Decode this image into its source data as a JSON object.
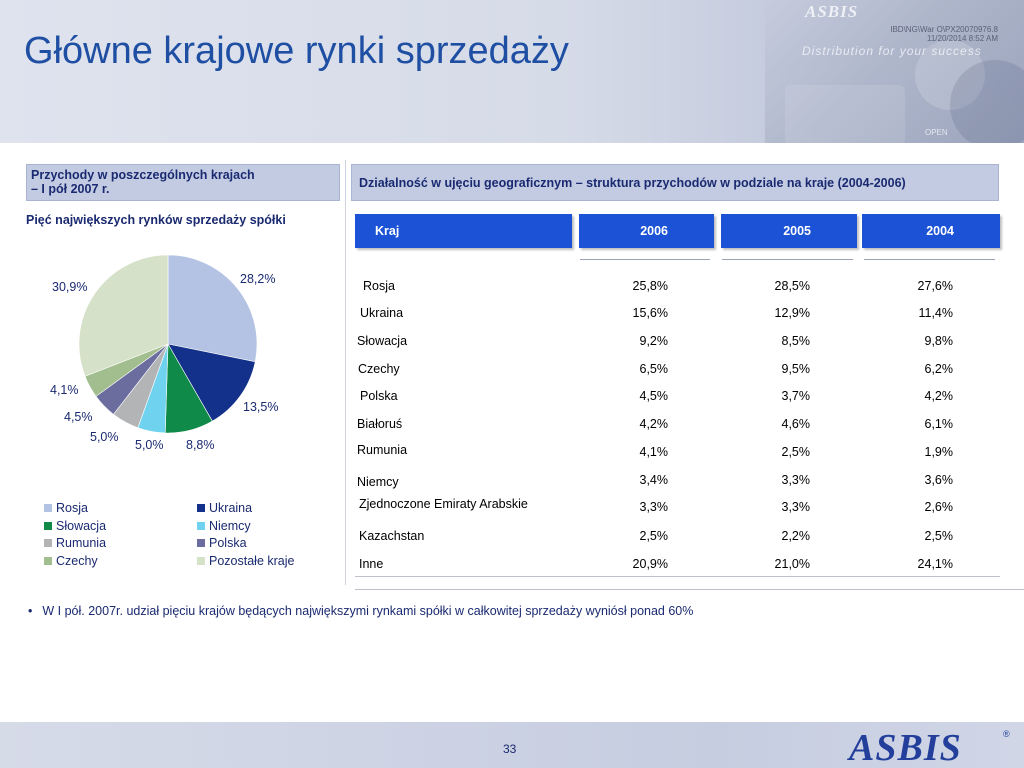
{
  "slide": {
    "title": "Główne krajowe rynki sprzedaży",
    "doc_id_line1": "IBD\\NG\\War O\\PX20070976.8",
    "doc_id_line2": "11/20/2014 8:52 AM",
    "watermark_logo": "ASBIS",
    "watermark_tagline": "Distribution for your success",
    "watermark_open": "OPEN",
    "page_number": "33",
    "logo_text": "ASBIS",
    "logo_reg": "®"
  },
  "left_panel": {
    "header_line1": "Przychody w poszczególnych krajach",
    "header_line2": "– I pół 2007 r.",
    "subtitle": "Pięć największych rynków sprzedaży spółki"
  },
  "right_panel": {
    "header": "Działalność w ujęciu geograficznym – struktura przychodów w podziale na kraje (2004-2006)"
  },
  "table": {
    "columns": [
      "Kraj",
      "2006",
      "2005",
      "2004"
    ],
    "rows": [
      {
        "country": "Rosja",
        "v2006": "25,8%",
        "v2005": "28,5%",
        "v2004": "27,6%"
      },
      {
        "country": "Ukraina",
        "v2006": "15,6%",
        "v2005": "12,9%",
        "v2004": "11,4%"
      },
      {
        "country": "Słowacja",
        "v2006": "9,2%",
        "v2005": "8,5%",
        "v2004": "9,8%"
      },
      {
        "country": "Czechy",
        "v2006": "6,5%",
        "v2005": "9,5%",
        "v2004": "6,2%"
      },
      {
        "country": "Polska",
        "v2006": "4,5%",
        "v2005": "3,7%",
        "v2004": "4,2%"
      },
      {
        "country": "Białoruś",
        "v2006": "4,2%",
        "v2005": "4,6%",
        "v2004": "6,1%"
      },
      {
        "country": "Rumunia",
        "v2006": "4,1%",
        "v2005": "2,5%",
        "v2004": "1,9%"
      },
      {
        "country": "Niemcy",
        "v2006": "3,4%",
        "v2005": "3,3%",
        "v2004": "3,6%"
      },
      {
        "country": "Zjednoczone Emiraty Arabskie",
        "v2006": "3,3%",
        "v2005": "3,3%",
        "v2004": "2,6%"
      },
      {
        "country": "Kazachstan",
        "v2006": "2,5%",
        "v2005": "2,2%",
        "v2004": "2,5%"
      },
      {
        "country": "Inne",
        "v2006": "20,9%",
        "v2005": "21,0%",
        "v2004": "24,1%"
      }
    ]
  },
  "chart_data": {
    "type": "pie",
    "title": "",
    "slices": [
      {
        "name": "Rosja",
        "value": 28.2,
        "label": "28,2%",
        "color": "#b4c3e3"
      },
      {
        "name": "Ukraina",
        "value": 13.5,
        "label": "13,5%",
        "color": "#13308a"
      },
      {
        "name": "Słowacja",
        "value": 8.8,
        "label": "8,8%",
        "color": "#0f8a48"
      },
      {
        "name": "Niemcy",
        "value": 5.0,
        "label": "5,0%",
        "color": "#6fd3ef"
      },
      {
        "name": "Rumunia",
        "value": 5.0,
        "label": "5,0%",
        "color": "#b2b4b6"
      },
      {
        "name": "Polska",
        "value": 4.5,
        "label": "4,5%",
        "color": "#6a6d9e"
      },
      {
        "name": "Czechy",
        "value": 4.1,
        "label": "4,1%",
        "color": "#a2bd8e"
      },
      {
        "name": "Pozostałe kraje",
        "value": 30.9,
        "label": "30,9%",
        "color": "#d5e1c8"
      }
    ],
    "legend": [
      {
        "name": "Rosja",
        "color": "#b4c3e3"
      },
      {
        "name": "Ukraina",
        "color": "#13308a"
      },
      {
        "name": "Słowacja",
        "color": "#0f8a48"
      },
      {
        "name": "Niemcy",
        "color": "#6fd3ef"
      },
      {
        "name": "Rumunia",
        "color": "#b2b4b6"
      },
      {
        "name": "Polska",
        "color": "#6a6d9e"
      },
      {
        "name": "Czechy",
        "color": "#a2bd8e"
      },
      {
        "name": "Pozostałe kraje",
        "color": "#d5e1c8"
      }
    ],
    "legend_placement": "bottom"
  },
  "bullets": [
    "W I pół. 2007r. udział pięciu krajów będących największymi rynkami spółki  w całkowitej sprzedaży wyniósł ponad 60%"
  ],
  "bullet_symbol": "•"
}
